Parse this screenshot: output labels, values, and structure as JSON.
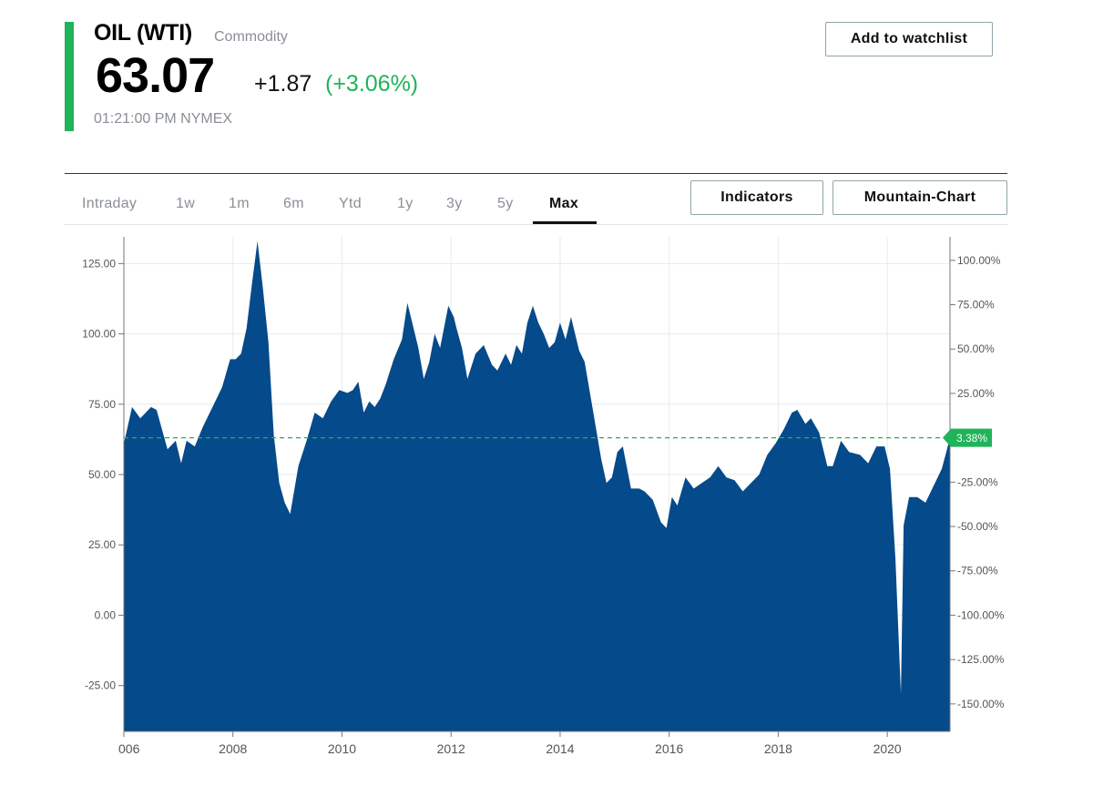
{
  "quote": {
    "symbol": "OIL (WTI)",
    "category": "Commodity",
    "price": "63.07",
    "change": "+1.87",
    "change_pct": "(+3.06%)",
    "timestamp": "01:21:00 PM NYMEX",
    "up_color": "#1fb35a"
  },
  "actions": {
    "watchlist": "Add to watchlist",
    "indicators": "Indicators",
    "chart_type": "Mountain-Chart"
  },
  "range_tabs": [
    {
      "label": "Intraday"
    },
    {
      "label": "1w"
    },
    {
      "label": "1m"
    },
    {
      "label": "6m"
    },
    {
      "label": "Ytd"
    },
    {
      "label": "1y"
    },
    {
      "label": "3y"
    },
    {
      "label": "5y"
    },
    {
      "label": "Max",
      "active": true
    }
  ],
  "chart_data": {
    "type": "area",
    "fill_color": "#054a8a",
    "reference_color": "#1fb35a",
    "x_ticks": [
      "006",
      "2008",
      "2010",
      "2012",
      "2014",
      "2016",
      "2018",
      "2020"
    ],
    "x_range": [
      2006.0,
      2021.15
    ],
    "y_left": {
      "ticks": [
        "125.00",
        "100.00",
        "75.00",
        "50.00",
        "25.00",
        "0.00",
        "-25.00"
      ],
      "range": [
        -41.3,
        134.5
      ]
    },
    "y_right": {
      "ticks": [
        "100.00%",
        "75.00%",
        "50.00%",
        "25.00%",
        "-25.00%",
        "-50.00%",
        "-75.00%",
        "-100.00%",
        "-125.00%",
        "-150.00%"
      ]
    },
    "reference_line": {
      "value": 63.07,
      "label": "3.38%"
    },
    "series": [
      {
        "x": [
          2006.0,
          2006.15,
          2006.3,
          2006.5,
          2006.6,
          2006.8,
          2006.95,
          2007.05,
          2007.15,
          2007.3,
          2007.45,
          2007.6,
          2007.8,
          2007.95,
          2008.05,
          2008.15,
          2008.25,
          2008.35,
          2008.45,
          2008.55,
          2008.65,
          2008.75,
          2008.85,
          2008.95,
          2009.05,
          2009.2,
          2009.35,
          2009.5,
          2009.65,
          2009.8,
          2009.95,
          2010.1,
          2010.2,
          2010.3,
          2010.4,
          2010.5,
          2010.6,
          2010.7,
          2010.8,
          2010.95,
          2011.1,
          2011.2,
          2011.3,
          2011.4,
          2011.5,
          2011.6,
          2011.7,
          2011.8,
          2011.95,
          2012.05,
          2012.1,
          2012.2,
          2012.3,
          2012.45,
          2012.6,
          2012.75,
          2012.85,
          2013.0,
          2013.1,
          2013.2,
          2013.3,
          2013.4,
          2013.5,
          2013.6,
          2013.7,
          2013.8,
          2013.9,
          2014.0,
          2014.1,
          2014.2,
          2014.35,
          2014.45,
          2014.6,
          2014.75,
          2014.85,
          2014.95,
          2015.05,
          2015.15,
          2015.3,
          2015.45,
          2015.55,
          2015.7,
          2015.85,
          2015.95,
          2016.05,
          2016.15,
          2016.3,
          2016.45,
          2016.6,
          2016.75,
          2016.9,
          2017.05,
          2017.2,
          2017.35,
          2017.5,
          2017.65,
          2017.8,
          2017.95,
          2018.1,
          2018.25,
          2018.35,
          2018.5,
          2018.6,
          2018.75,
          2018.9,
          2019.0,
          2019.15,
          2019.3,
          2019.5,
          2019.65,
          2019.8,
          2019.95,
          2020.05,
          2020.15,
          2020.25,
          2020.3,
          2020.4,
          2020.55,
          2020.7,
          2020.85,
          2021.0,
          2021.15
        ],
        "y": [
          61,
          74,
          70,
          74,
          73,
          59,
          62,
          54,
          62,
          60,
          67,
          73,
          81,
          91,
          91,
          93,
          102,
          118,
          133,
          116,
          97,
          64,
          47,
          40,
          36,
          53,
          62,
          72,
          70,
          76,
          80,
          79,
          80,
          83,
          72,
          76,
          74,
          77,
          82,
          91,
          98,
          111,
          103,
          95,
          84,
          90,
          100,
          95,
          110,
          106,
          102,
          95,
          84,
          93,
          96,
          89,
          87,
          93,
          89,
          96,
          93,
          104,
          110,
          104,
          100,
          95,
          97,
          104,
          98,
          106,
          94,
          90,
          73,
          56,
          47,
          49,
          58,
          60,
          45,
          45,
          44,
          41,
          33,
          31,
          42,
          39,
          49,
          45,
          47,
          49,
          53,
          49,
          48,
          44,
          47,
          50,
          57,
          61,
          66,
          72,
          73,
          68,
          70,
          65,
          53,
          53,
          62,
          58,
          57,
          54,
          60,
          60,
          52,
          20,
          -28,
          32,
          42,
          42,
          40,
          46,
          52,
          63
        ]
      }
    ]
  }
}
